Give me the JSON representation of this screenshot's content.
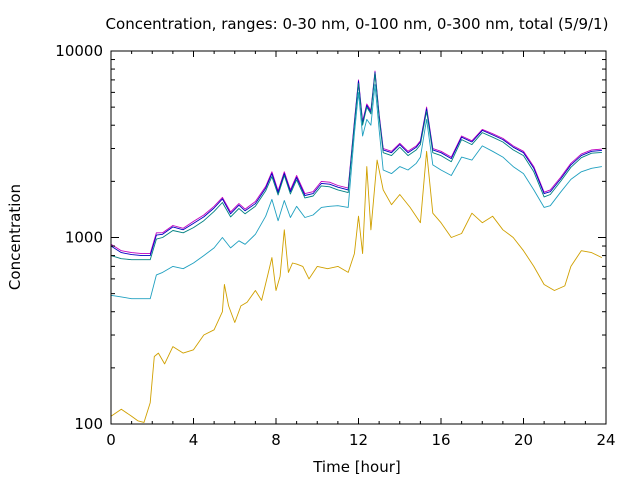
{
  "chart_data": {
    "type": "line",
    "title": "Concentration, ranges: 0-30 nm, 0-100 nm, 0-300 nm, total (5/9/1)",
    "xlabel": "Time [hour]",
    "ylabel": "Concentration",
    "xlim": [
      0,
      24
    ],
    "ylim": [
      100,
      10000
    ],
    "yscale": "log",
    "x_ticks": [
      0,
      4,
      8,
      12,
      16,
      20,
      24
    ],
    "x_tick_labels": [
      "0",
      "4",
      "8",
      "12",
      "16",
      "20",
      "24"
    ],
    "y_ticks": [
      100,
      1000,
      10000
    ],
    "y_tick_labels": [
      "100",
      "1000",
      "10000"
    ],
    "grid": false,
    "series": [
      {
        "color": "#c000c0",
        "x": [
          0,
          0.5,
          1,
          1.5,
          1.9,
          2.2,
          2.5,
          3,
          3.5,
          4,
          4.5,
          5,
          5.4,
          5.8,
          6.2,
          6.5,
          7,
          7.5,
          7.8,
          8.1,
          8.4,
          8.7,
          9,
          9.4,
          9.8,
          10.2,
          10.6,
          11,
          11.5,
          11.8,
          12,
          12.2,
          12.4,
          12.6,
          12.8,
          13,
          13.2,
          13.6,
          14,
          14.4,
          14.8,
          15,
          15.3,
          15.6,
          16,
          16.5,
          17,
          17.5,
          18,
          18.5,
          19,
          19.5,
          20,
          20.5,
          21,
          21.3,
          21.8,
          22.3,
          22.8,
          23.3,
          23.8
        ],
        "values": [
          920,
          850,
          830,
          820,
          820,
          1060,
          1060,
          1160,
          1120,
          1220,
          1320,
          1470,
          1640,
          1370,
          1520,
          1420,
          1560,
          1880,
          2250,
          1780,
          2250,
          1800,
          2150,
          1720,
          1760,
          2000,
          1980,
          1900,
          1840,
          4200,
          7000,
          4200,
          5200,
          4800,
          7800,
          4600,
          3000,
          2900,
          3200,
          2900,
          3100,
          3300,
          5000,
          3000,
          2900,
          2700,
          3500,
          3300,
          3800,
          3600,
          3400,
          3100,
          2900,
          2400,
          1750,
          1800,
          2100,
          2500,
          2800,
          2950,
          2980
        ]
      },
      {
        "color": "#0000c0",
        "x": [
          0,
          0.5,
          1,
          1.5,
          1.9,
          2.2,
          2.5,
          3,
          3.5,
          4,
          4.5,
          5,
          5.4,
          5.8,
          6.2,
          6.5,
          7,
          7.5,
          7.8,
          8.1,
          8.4,
          8.7,
          9,
          9.4,
          9.8,
          10.2,
          10.6,
          11,
          11.5,
          11.8,
          12,
          12.2,
          12.4,
          12.6,
          12.8,
          13,
          13.2,
          13.6,
          14,
          14.4,
          14.8,
          15,
          15.3,
          15.6,
          16,
          16.5,
          17,
          17.5,
          18,
          18.5,
          19,
          19.5,
          20,
          20.5,
          21,
          21.3,
          21.8,
          22.3,
          22.8,
          23.3,
          23.8
        ],
        "values": [
          900,
          830,
          810,
          800,
          800,
          1030,
          1040,
          1140,
          1100,
          1190,
          1290,
          1440,
          1610,
          1340,
          1490,
          1390,
          1520,
          1840,
          2200,
          1740,
          2200,
          1760,
          2100,
          1680,
          1720,
          1950,
          1930,
          1860,
          1800,
          4100,
          6900,
          4100,
          5100,
          4700,
          7700,
          4500,
          2950,
          2850,
          3150,
          2850,
          3050,
          3250,
          4900,
          2950,
          2850,
          2650,
          3450,
          3250,
          3750,
          3550,
          3350,
          3050,
          2850,
          2350,
          1720,
          1760,
          2060,
          2450,
          2750,
          2900,
          2930
        ]
      },
      {
        "color": "#008080",
        "x": [
          0,
          0.5,
          1,
          1.5,
          1.9,
          2.2,
          2.5,
          3,
          3.5,
          4,
          4.5,
          5,
          5.4,
          5.8,
          6.2,
          6.5,
          7,
          7.5,
          7.8,
          8.1,
          8.4,
          8.7,
          9,
          9.4,
          9.8,
          10.2,
          10.6,
          11,
          11.5,
          11.8,
          12,
          12.2,
          12.4,
          12.6,
          12.8,
          13,
          13.2,
          13.6,
          14,
          14.4,
          14.8,
          15,
          15.3,
          15.6,
          16,
          16.5,
          17,
          17.5,
          18,
          18.5,
          19,
          19.5,
          20,
          20.5,
          21,
          21.3,
          21.8,
          22.3,
          22.8,
          23.3,
          23.8
        ],
        "values": [
          800,
          770,
          760,
          760,
          760,
          980,
          1000,
          1090,
          1060,
          1130,
          1230,
          1380,
          1540,
          1290,
          1430,
          1340,
          1470,
          1780,
          2120,
          1690,
          2150,
          1710,
          2040,
          1630,
          1670,
          1890,
          1870,
          1800,
          1740,
          4000,
          6700,
          4000,
          5000,
          4600,
          7600,
          4400,
          2850,
          2750,
          3050,
          2750,
          2950,
          3150,
          4750,
          2850,
          2750,
          2550,
          3350,
          3150,
          3650,
          3450,
          3250,
          2950,
          2750,
          2250,
          1650,
          1700,
          2000,
          2380,
          2680,
          2830,
          2860
        ]
      },
      {
        "color": "#20a0c0",
        "x": [
          0,
          0.5,
          1,
          1.5,
          1.9,
          2.2,
          2.5,
          3,
          3.5,
          4,
          4.5,
          5,
          5.4,
          5.8,
          6.2,
          6.5,
          7,
          7.5,
          7.8,
          8.1,
          8.4,
          8.7,
          9,
          9.4,
          9.8,
          10.2,
          10.6,
          11,
          11.5,
          11.8,
          12,
          12.2,
          12.4,
          12.6,
          12.8,
          13,
          13.2,
          13.6,
          14,
          14.4,
          14.8,
          15,
          15.3,
          15.6,
          16,
          16.5,
          17,
          17.5,
          18,
          18.5,
          19,
          19.5,
          20,
          20.5,
          21,
          21.3,
          21.8,
          22.3,
          22.8,
          23.3,
          23.8
        ],
        "values": [
          490,
          480,
          470,
          470,
          470,
          630,
          650,
          700,
          680,
          730,
          800,
          880,
          1000,
          880,
          960,
          920,
          1040,
          1300,
          1600,
          1230,
          1580,
          1280,
          1470,
          1280,
          1320,
          1450,
          1470,
          1480,
          1450,
          3600,
          6000,
          3500,
          4300,
          4000,
          6600,
          3800,
          2300,
          2200,
          2400,
          2300,
          2500,
          2700,
          4300,
          2450,
          2300,
          2150,
          2700,
          2600,
          3100,
          2900,
          2700,
          2400,
          2200,
          1800,
          1450,
          1480,
          1750,
          2050,
          2250,
          2350,
          2400
        ]
      },
      {
        "color": "#d0a000",
        "x": [
          0,
          0.5,
          1,
          1.3,
          1.6,
          1.9,
          2.1,
          2.3,
          2.6,
          3,
          3.5,
          4,
          4.5,
          5,
          5.4,
          5.5,
          5.7,
          6,
          6.3,
          6.6,
          7,
          7.3,
          7.6,
          7.8,
          8,
          8.2,
          8.4,
          8.6,
          8.8,
          9,
          9.3,
          9.6,
          10,
          10.5,
          11,
          11.5,
          11.8,
          12,
          12.2,
          12.4,
          12.6,
          12.9,
          13.2,
          13.6,
          14,
          14.5,
          15,
          15.3,
          15.6,
          16,
          16.5,
          17,
          17.5,
          18,
          18.5,
          19,
          19.5,
          20,
          20.5,
          21,
          21.5,
          22,
          22.3,
          22.8,
          23.3,
          23.8
        ],
        "values": [
          110,
          120,
          110,
          104,
          102,
          130,
          230,
          240,
          210,
          260,
          240,
          250,
          300,
          320,
          400,
          560,
          430,
          350,
          430,
          450,
          520,
          460,
          630,
          780,
          520,
          620,
          1100,
          650,
          730,
          720,
          700,
          600,
          700,
          680,
          700,
          650,
          820,
          1300,
          820,
          2400,
          1100,
          2600,
          1800,
          1500,
          1700,
          1450,
          1200,
          2900,
          1350,
          1200,
          1000,
          1050,
          1350,
          1200,
          1300,
          1100,
          1000,
          850,
          700,
          560,
          520,
          550,
          700,
          850,
          830,
          780
        ]
      }
    ]
  }
}
